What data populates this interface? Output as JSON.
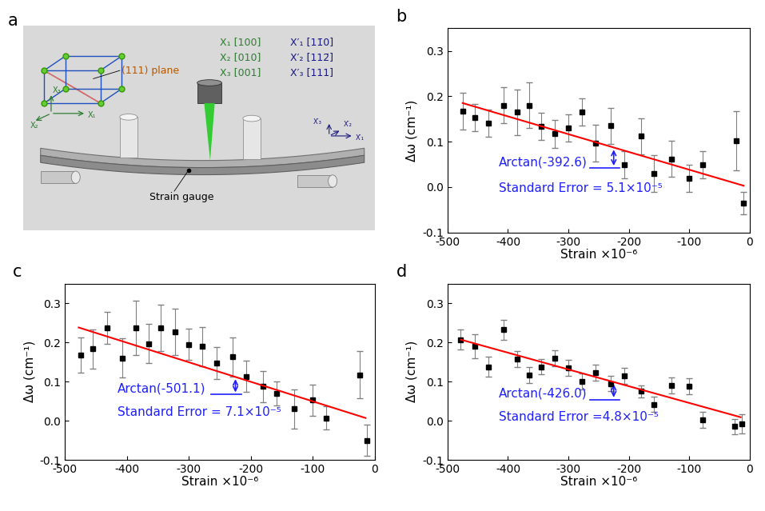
{
  "diagram": {
    "label": "a",
    "plane_label": "(111) plane",
    "axes_original": [
      "X₁ [100]",
      "X₂ [010]",
      "X₃ [001]"
    ],
    "axes_rotated": [
      "X′₁ [11̄0]",
      "X′₂ [112̄]",
      "X′₃ [111]"
    ],
    "crystal_axes": [
      "X₁",
      "X₂",
      "X₃"
    ],
    "beam_axes": [
      "X′₁",
      "X′₂",
      "X′₃"
    ],
    "gauge_label": "Strain gauge"
  },
  "chart_data": [
    {
      "type": "scatter",
      "title": "b",
      "x_label": "Strain ×10⁻⁶",
      "y_label": "Δω (cm⁻¹)",
      "xlim": [
        -500,
        0
      ],
      "xticks": [
        -500,
        -400,
        -300,
        -200,
        -100,
        0
      ],
      "ylim": [
        -0.1,
        0.35
      ],
      "yticks": [
        -0.1,
        0.0,
        0.1,
        0.2,
        0.3
      ],
      "marker": "square",
      "color": "black",
      "x": [
        -475,
        -455,
        -432,
        -407,
        -385,
        -365,
        -345,
        -322,
        -300,
        -278,
        -255,
        -230,
        -207,
        -180,
        -158,
        -130,
        -100,
        -78,
        -22,
        -10
      ],
      "values": [
        0.167,
        0.153,
        0.14,
        0.18,
        0.165,
        0.18,
        0.133,
        0.117,
        0.13,
        0.165,
        0.097,
        0.135,
        0.05,
        0.112,
        0.03,
        0.062,
        0.02,
        0.05,
        0.102,
        -0.035
      ],
      "errors": [
        0.04,
        0.03,
        0.03,
        0.04,
        0.05,
        0.05,
        0.03,
        0.03,
        0.03,
        0.03,
        0.04,
        0.04,
        0.03,
        0.04,
        0.04,
        0.04,
        0.03,
        0.03,
        0.065,
        0.025
      ],
      "fit": {
        "color": "red",
        "x": [
          -475,
          -10
        ],
        "values": [
          0.185,
          0.003
        ]
      },
      "annotations": {
        "color": "#1f1fff",
        "slope": "Arctan(-392.6)",
        "error": "Standard Error = 5.1×10⁻⁵"
      }
    },
    {
      "type": "scatter",
      "title": "c",
      "x_label": "Strain ×10⁻⁶",
      "y_label": "Δω (cm⁻¹)",
      "xlim": [
        -500,
        0
      ],
      "xticks": [
        -500,
        -400,
        -300,
        -200,
        -100,
        0
      ],
      "ylim": [
        -0.1,
        0.35
      ],
      "yticks": [
        -0.1,
        0.0,
        0.1,
        0.2,
        0.3
      ],
      "marker": "square",
      "color": "black",
      "x": [
        -475,
        -455,
        -432,
        -407,
        -385,
        -365,
        -345,
        -322,
        -300,
        -278,
        -255,
        -230,
        -207,
        -180,
        -158,
        -130,
        -100,
        -78,
        -25,
        -13
      ],
      "values": [
        0.167,
        0.183,
        0.237,
        0.16,
        0.237,
        0.197,
        0.237,
        0.227,
        0.195,
        0.19,
        0.147,
        0.163,
        0.113,
        0.087,
        0.07,
        0.03,
        0.053,
        0.007,
        0.117,
        -0.05
      ],
      "errors": [
        0.045,
        0.05,
        0.04,
        0.05,
        0.07,
        0.05,
        0.06,
        0.06,
        0.04,
        0.05,
        0.04,
        0.05,
        0.04,
        0.04,
        0.03,
        0.05,
        0.04,
        0.03,
        0.06,
        0.04
      ],
      "fit": {
        "color": "red",
        "x": [
          -478,
          -15
        ],
        "values": [
          0.238,
          0.007
        ]
      },
      "annotations": {
        "color": "#1f1fff",
        "slope": "Arctan(-501.1)",
        "error": "Standard Error = 7.1×10⁻⁵"
      }
    },
    {
      "type": "scatter",
      "title": "d",
      "x_label": "Strain ×10⁻⁶",
      "y_label": "Δω (cm⁻¹)",
      "xlim": [
        -500,
        0
      ],
      "xticks": [
        -500,
        -400,
        -300,
        -200,
        -100,
        0
      ],
      "ylim": [
        -0.1,
        0.35
      ],
      "yticks": [
        -0.1,
        0.0,
        0.1,
        0.2,
        0.3
      ],
      "marker": "square",
      "color": "black",
      "x": [
        -478,
        -455,
        -432,
        -407,
        -385,
        -365,
        -345,
        -322,
        -300,
        -278,
        -255,
        -230,
        -207,
        -180,
        -158,
        -130,
        -100,
        -78,
        -25,
        -13
      ],
      "values": [
        0.207,
        0.19,
        0.138,
        0.232,
        0.157,
        0.117,
        0.138,
        0.16,
        0.135,
        0.1,
        0.123,
        0.095,
        0.115,
        0.075,
        0.042,
        0.09,
        0.088,
        0.002,
        -0.015,
        -0.008
      ],
      "errors": [
        0.025,
        0.03,
        0.025,
        0.025,
        0.02,
        0.02,
        0.02,
        0.02,
        0.02,
        0.02,
        0.02,
        0.02,
        0.02,
        0.015,
        0.02,
        0.02,
        0.02,
        0.02,
        0.02,
        0.025
      ],
      "fit": {
        "color": "red",
        "x": [
          -478,
          -15
        ],
        "values": [
          0.207,
          0.009
        ]
      },
      "annotations": {
        "color": "#1f1fff",
        "slope": "Arctan(-426.0)",
        "error": "Standard Error =4.8×10⁻⁵"
      }
    }
  ]
}
